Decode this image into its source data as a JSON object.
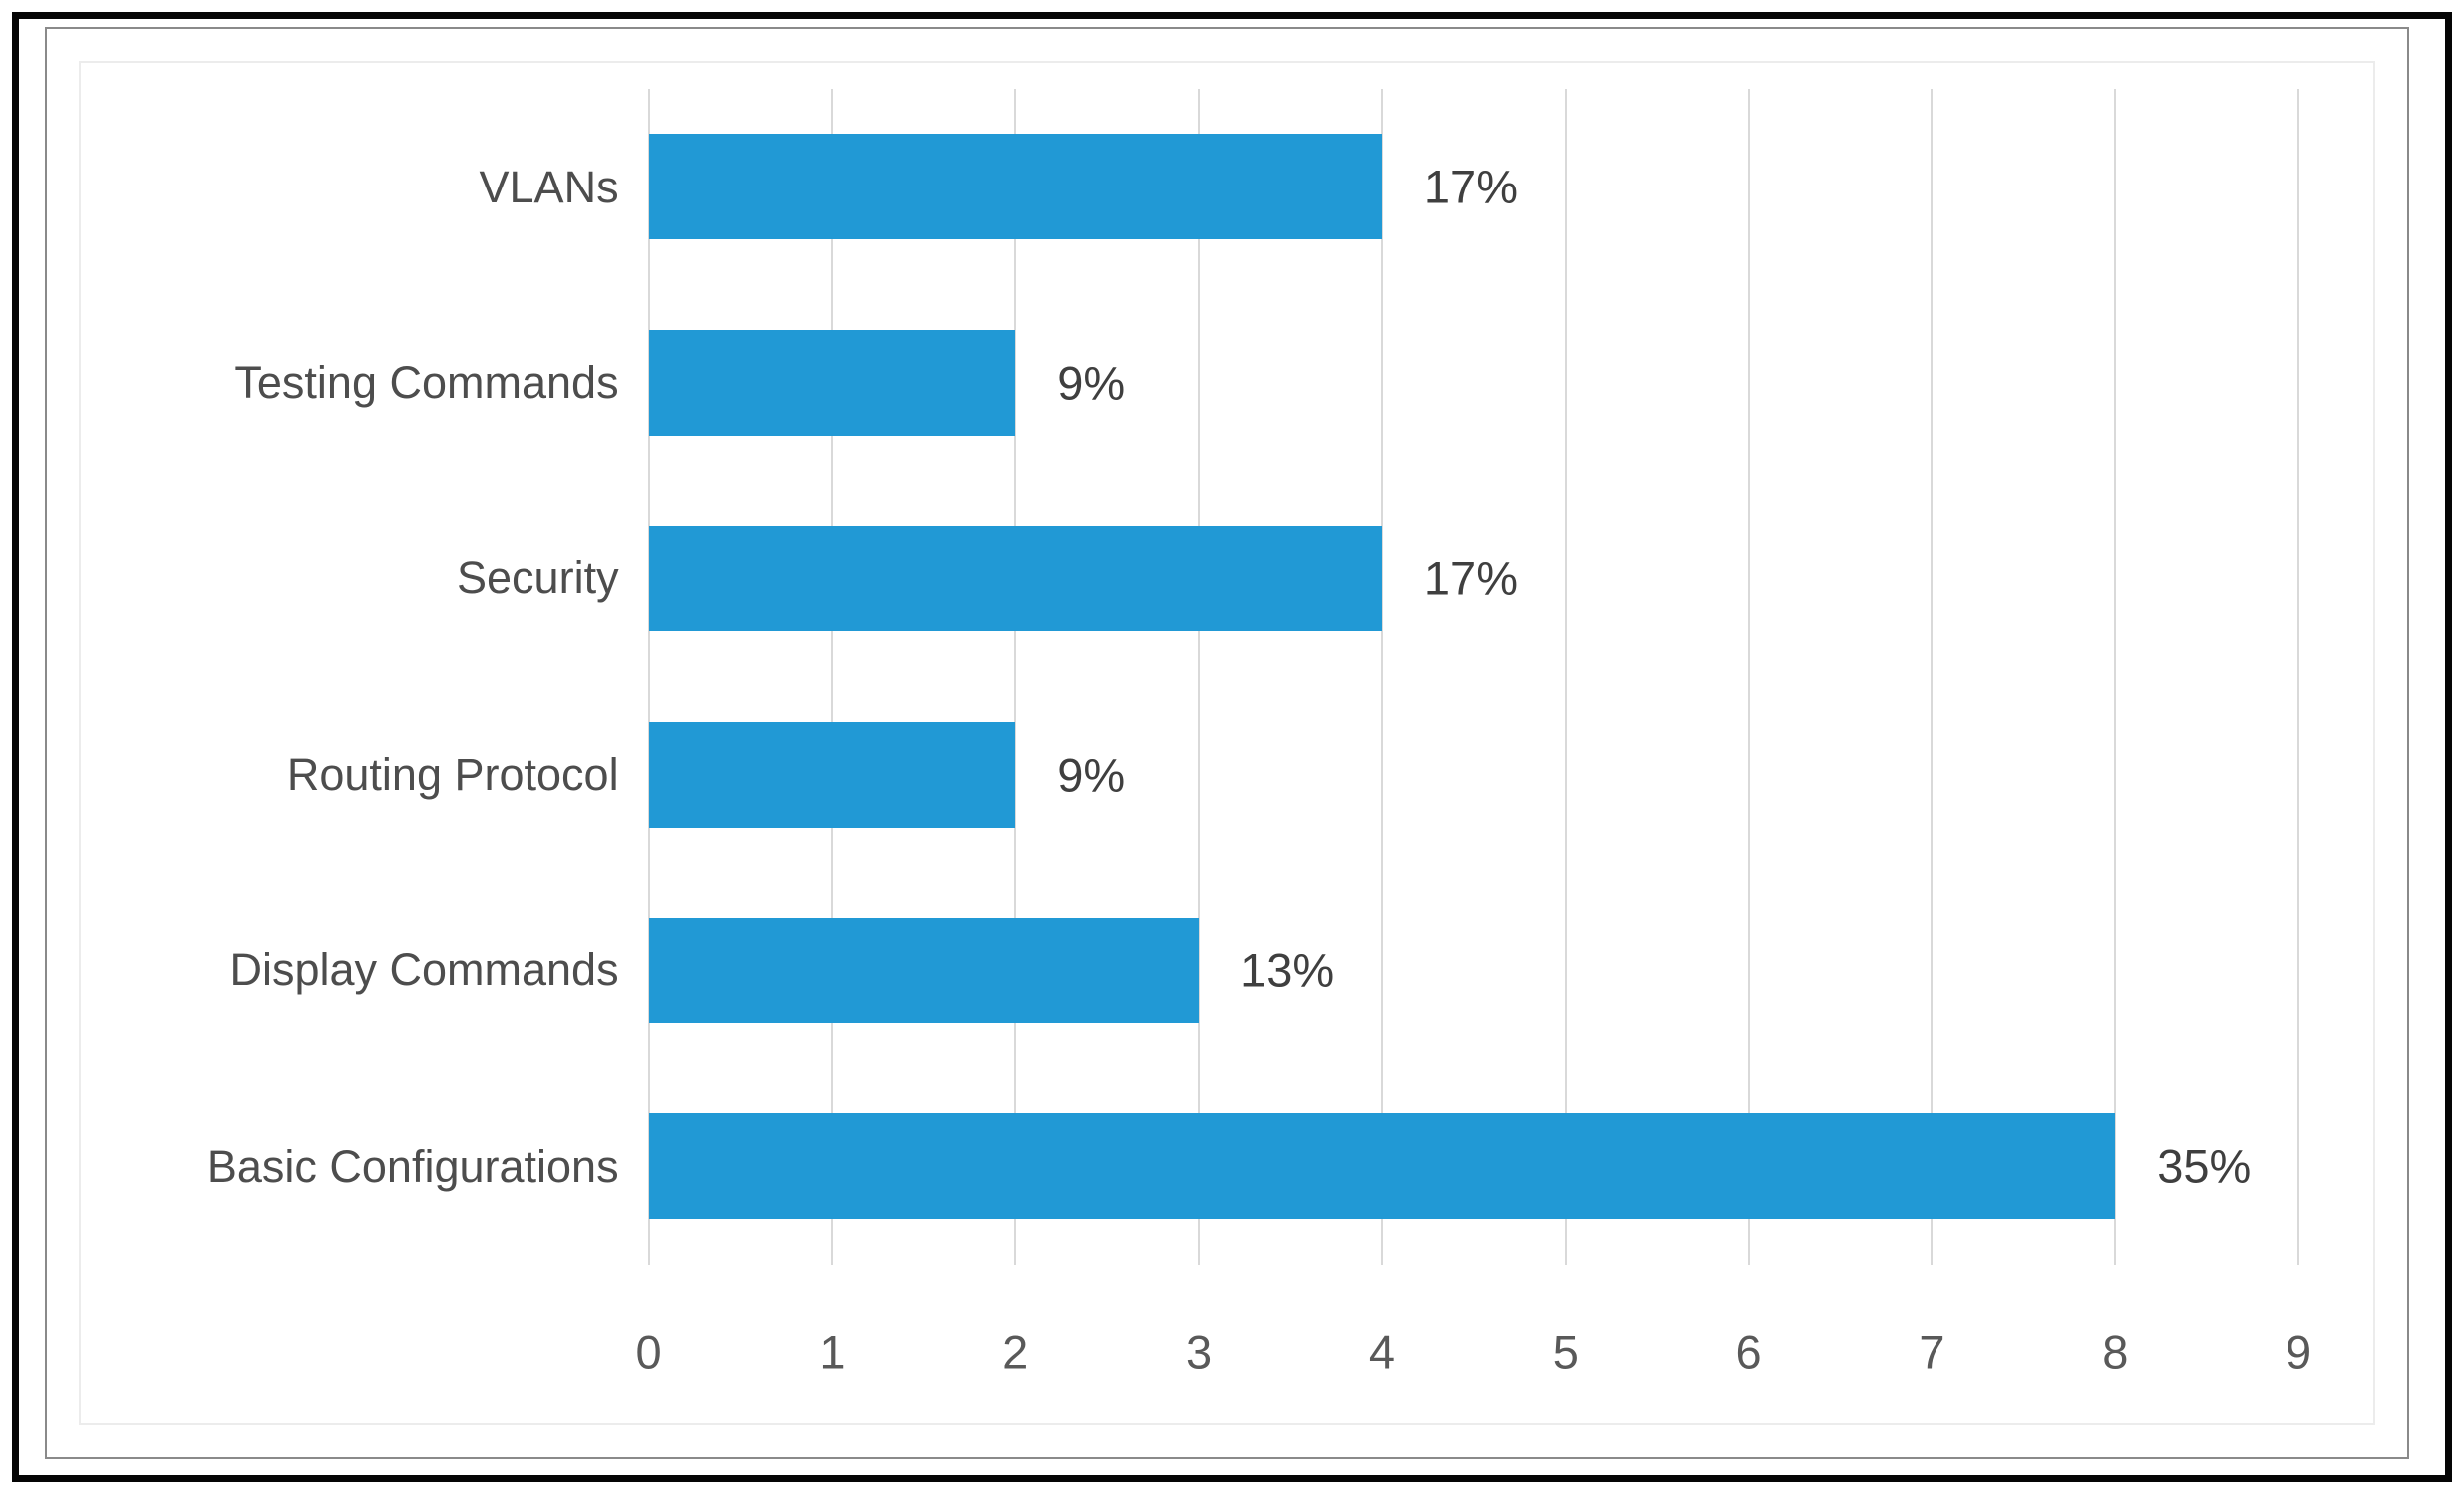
{
  "chart_data": {
    "type": "bar",
    "orientation": "horizontal",
    "title": "",
    "xlabel": "",
    "ylabel": "",
    "categories": [
      "VLANs",
      "Testing Commands",
      "Security",
      "Routing Protocol",
      "Display Commands",
      "Basic Configurations"
    ],
    "values": [
      4,
      2,
      4,
      2,
      3,
      8
    ],
    "value_labels": [
      "17%",
      "9%",
      "17%",
      "9%",
      "13%",
      "35%"
    ],
    "x_ticks": [
      "0",
      "1",
      "2",
      "3",
      "4",
      "5",
      "6",
      "7",
      "8",
      "9"
    ],
    "xlim": [
      0,
      9
    ],
    "grid": "vertical-gridlines-on",
    "legend": "none",
    "colors": {
      "bar": "#2199d5",
      "gridline": "#d9d9d9",
      "category_label": "#4d4d4d",
      "tick_label": "#595959",
      "value_label": "#3f3f3f",
      "frame_border": "#8a8a8a",
      "outer_border": "#050505"
    }
  }
}
